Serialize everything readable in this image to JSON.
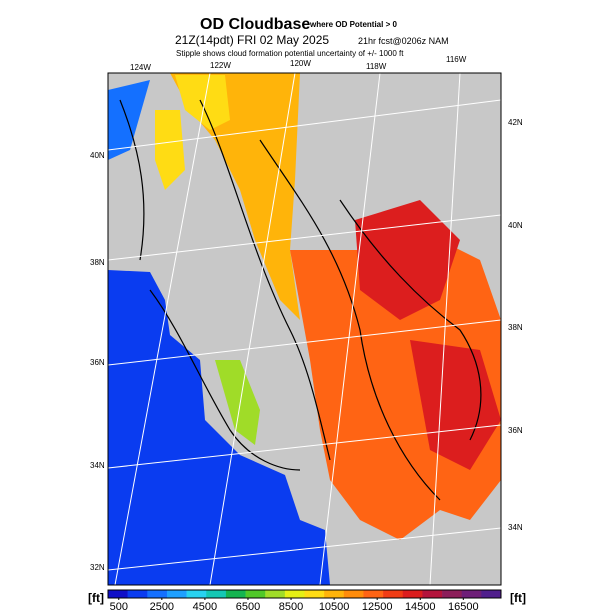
{
  "header": {
    "title": "OD Cloudbase",
    "title_note": "where OD Potential > 0",
    "valid_time": "21Z(14pdt) FRI 02 May 2025",
    "forecast": "21hr fcst@0206z NAM",
    "note": "Stipple shows cloud formation potential uncertainty of +/- 1000 ft"
  },
  "map": {
    "lon_labels": [
      "124W",
      "122W",
      "120W",
      "118W",
      "116W"
    ],
    "lat_labels_left": [
      "40N",
      "38N",
      "36N",
      "34N",
      "32N"
    ],
    "lat_labels_right": [
      "42N",
      "40N",
      "38N",
      "36N",
      "34N"
    ]
  },
  "colorbar": {
    "unit_left": "[ft]",
    "unit_right": "[ft]",
    "lim": [
      0,
      18250
    ],
    "ticks": [
      500,
      2500,
      4500,
      6500,
      8500,
      10500,
      12500,
      14500,
      16500
    ],
    "colors": [
      "#1010c8",
      "#0a3cf0",
      "#1470ff",
      "#1ea0ff",
      "#28d2f0",
      "#14c8b4",
      "#14b450",
      "#50c828",
      "#a0dc28",
      "#e6f014",
      "#ffdc14",
      "#ffb40a",
      "#ff8c0a",
      "#ff6414",
      "#f03c14",
      "#dc1e1e",
      "#b4143c",
      "#8c1e5a",
      "#6e1e78",
      "#501e8c"
    ]
  }
}
